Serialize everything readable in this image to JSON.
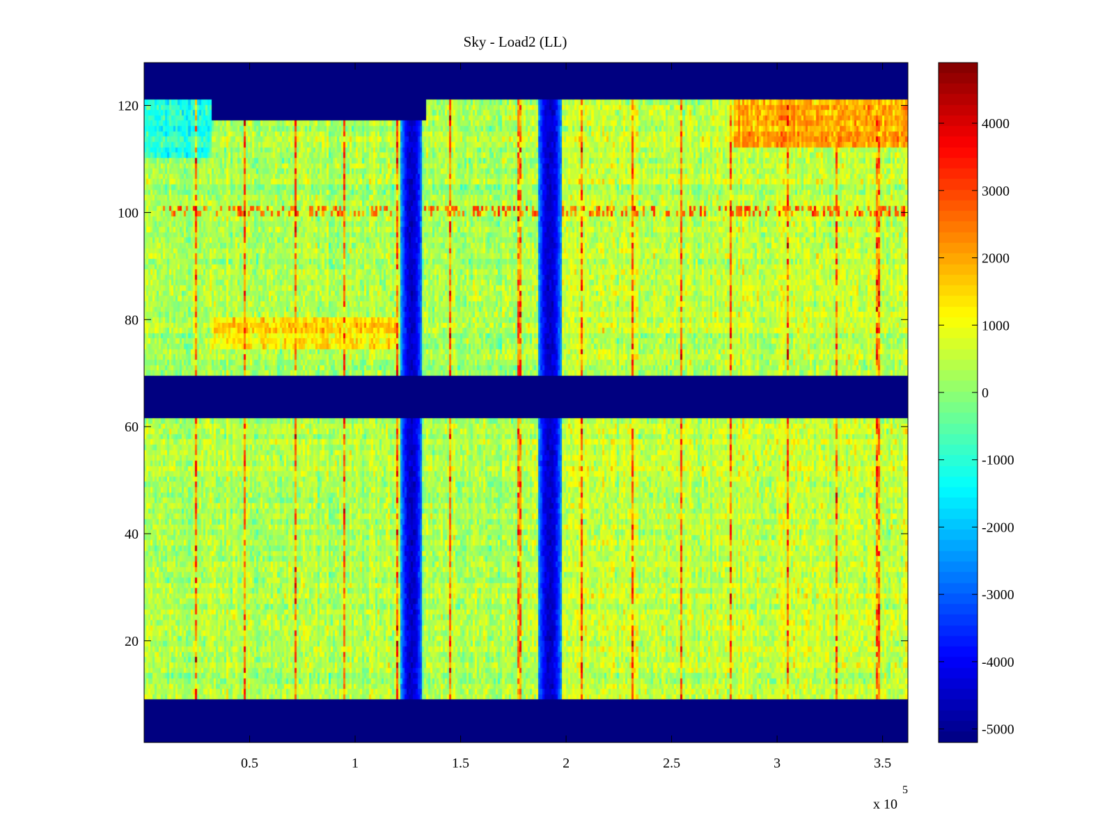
{
  "chart_data": {
    "type": "heatmap",
    "title": "Sky - Load2 (LL)",
    "xlabel": "",
    "ylabel": "",
    "x_multiplier_label": "x 10",
    "x_multiplier_exponent": "5",
    "xlim": [
      0,
      3.62
    ],
    "ylim": [
      1,
      128
    ],
    "x_ticks": [
      0.5,
      1,
      1.5,
      2,
      2.5,
      3,
      3.5
    ],
    "x_tick_labels": [
      "0.5",
      "1",
      "1.5",
      "2",
      "2.5",
      "3",
      "3.5"
    ],
    "y_ticks": [
      20,
      40,
      60,
      80,
      100,
      120
    ],
    "y_tick_labels": [
      "20",
      "40",
      "60",
      "80",
      "100",
      "120"
    ],
    "colormap": "jet",
    "clim": [
      -5200,
      4900
    ],
    "colorbar_ticks": [
      4000,
      3000,
      2000,
      1000,
      0,
      -1000,
      -2000,
      -3000,
      -4000,
      -5000
    ],
    "colorbar_tick_labels": [
      "4000",
      "3000",
      "2000",
      "1000",
      "0",
      "-1000",
      "-2000",
      "-3000",
      "-4000",
      "-5000"
    ],
    "masked_value": -5200,
    "masked_channel_ranges": [
      [
        1,
        8
      ],
      [
        62,
        69
      ],
      [
        122,
        128
      ]
    ],
    "masked_regions": [
      {
        "x": [
          0.32,
          1.34
        ],
        "y": [
          117,
          122
        ]
      }
    ],
    "background_level": 300,
    "low_bands": [
      {
        "x": [
          1.22,
          1.32
        ],
        "value": -4500
      },
      {
        "x": [
          1.87,
          1.98
        ],
        "value": -4500
      }
    ],
    "high_regions": [
      {
        "x": [
          0.32,
          1.2
        ],
        "y": [
          74,
          80
        ],
        "value": 1100
      },
      {
        "x": [
          2.8,
          3.62
        ],
        "y": [
          112,
          121
        ],
        "value": 1400
      }
    ],
    "spike_row": {
      "y": [
        99,
        101
      ],
      "value": 2800
    },
    "spike_columns_x": [
      0.25,
      0.48,
      0.72,
      0.95,
      1.2,
      1.45,
      1.78,
      2.08,
      2.32,
      2.55,
      2.78,
      3.05,
      3.28,
      3.48
    ]
  }
}
